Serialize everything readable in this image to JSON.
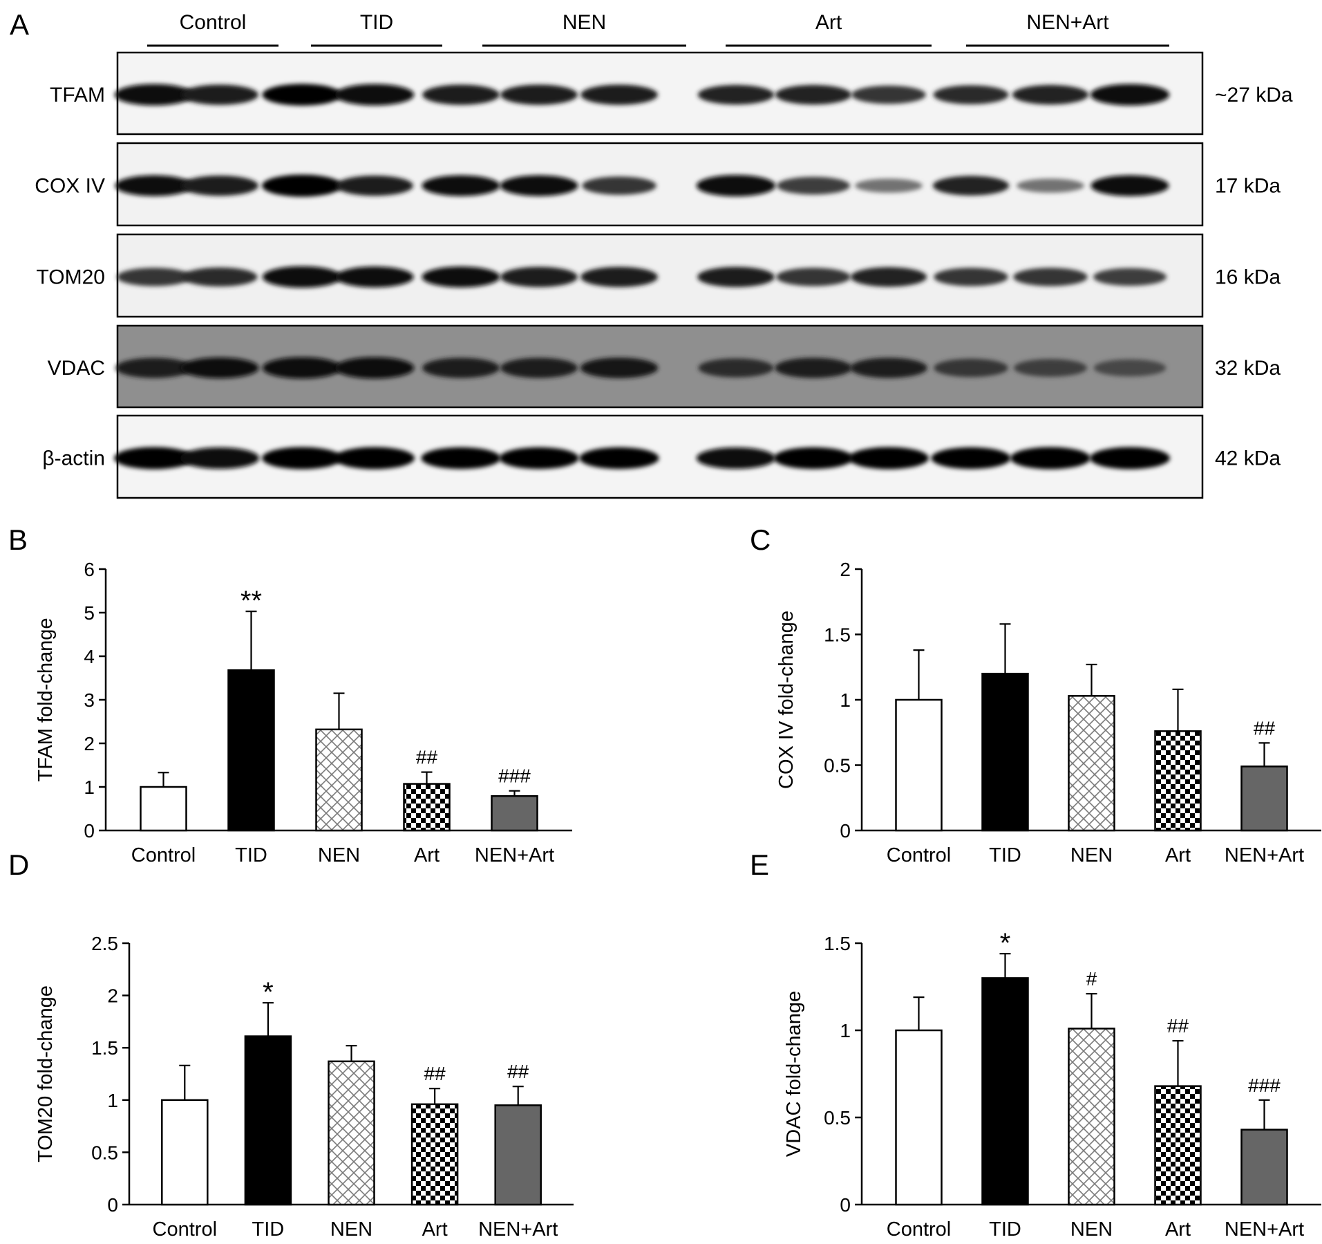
{
  "blot": {
    "panel_letter": "A",
    "groups": [
      {
        "label": "Control",
        "lanes": 2
      },
      {
        "label": "TID",
        "lanes": 2
      },
      {
        "label": "NEN",
        "lanes": 3
      },
      {
        "label": "Art",
        "lanes": 3
      },
      {
        "label": "NEN+Art",
        "lanes": 3
      }
    ],
    "rows": [
      {
        "protein": "TFAM",
        "mw": "~27 kDa",
        "background": "#f4f4f4",
        "intensity": [
          0.95,
          0.85,
          0.97,
          0.95,
          0.85,
          0.85,
          0.85,
          0.8,
          0.8,
          0.7,
          0.75,
          0.8,
          0.95
        ]
      },
      {
        "protein": "COX IV",
        "mw": "17 kDa",
        "background": "#f2f2f2",
        "intensity": [
          0.9,
          0.85,
          1.0,
          0.85,
          0.9,
          0.9,
          0.7,
          0.95,
          0.65,
          0.35,
          0.8,
          0.35,
          0.9
        ]
      },
      {
        "protein": "TOM20",
        "mw": "16 kDa",
        "background": "#f0f0f0",
        "intensity": [
          0.7,
          0.75,
          0.95,
          0.9,
          0.9,
          0.85,
          0.85,
          0.85,
          0.7,
          0.8,
          0.7,
          0.7,
          0.65
        ]
      },
      {
        "protein": "VDAC",
        "mw": "32 kDa",
        "background": "#8f8f8f",
        "intensity": [
          0.85,
          0.9,
          0.95,
          0.95,
          0.85,
          0.85,
          0.88,
          0.75,
          0.85,
          0.85,
          0.7,
          0.65,
          0.6
        ]
      },
      {
        "protein": "β-actin",
        "mw": "42 kDa",
        "background": "#f4f4f4",
        "intensity": [
          1.0,
          0.95,
          1.0,
          1.0,
          0.97,
          0.97,
          0.97,
          0.95,
          0.97,
          1.0,
          0.97,
          1.0,
          1.0
        ]
      }
    ]
  },
  "chart_data": [
    {
      "panel": "B",
      "type": "bar",
      "categories": [
        "Control",
        "TID",
        "NEN",
        "Art",
        "NEN+Art"
      ],
      "values": [
        1.0,
        3.68,
        2.32,
        1.07,
        0.79
      ],
      "errors": [
        0.33,
        1.35,
        0.83,
        0.27,
        0.12
      ],
      "annotations": [
        "",
        "**",
        "",
        "##",
        "###"
      ],
      "xlabel": "",
      "ylabel": "TFAM fold-change",
      "ylim": [
        0,
        6
      ],
      "yticks": [
        0,
        1,
        2,
        3,
        4,
        5,
        6
      ]
    },
    {
      "panel": "C",
      "type": "bar",
      "categories": [
        "Control",
        "TID",
        "NEN",
        "Art",
        "NEN+Art"
      ],
      "values": [
        1.0,
        1.2,
        1.03,
        0.76,
        0.49
      ],
      "errors": [
        0.38,
        0.38,
        0.24,
        0.32,
        0.18
      ],
      "annotations": [
        "",
        "",
        "",
        "",
        "##"
      ],
      "xlabel": "",
      "ylabel": "COX IV fold-change",
      "ylim": [
        0,
        2
      ],
      "yticks": [
        "0",
        "0.5",
        "1",
        "1.5",
        "2"
      ]
    },
    {
      "panel": "D",
      "type": "bar",
      "categories": [
        "Control",
        "TID",
        "NEN",
        "Art",
        "NEN+Art"
      ],
      "values": [
        1.0,
        1.61,
        1.37,
        0.96,
        0.95
      ],
      "errors": [
        0.33,
        0.32,
        0.15,
        0.15,
        0.18
      ],
      "annotations": [
        "",
        "*",
        "",
        "##",
        "##"
      ],
      "xlabel": "",
      "ylabel": "TOM20 fold-change",
      "ylim": [
        0,
        2.5
      ],
      "yticks": [
        "0",
        "0.5",
        "1",
        "1.5",
        "2",
        "2.5"
      ]
    },
    {
      "panel": "E",
      "type": "bar",
      "categories": [
        "Control",
        "TID",
        "NEN",
        "Art",
        "NEN+Art"
      ],
      "values": [
        1.0,
        1.3,
        1.01,
        0.68,
        0.43
      ],
      "errors": [
        0.19,
        0.14,
        0.2,
        0.26,
        0.17
      ],
      "annotations": [
        "",
        "*",
        "#",
        "##",
        "###"
      ],
      "xlabel": "",
      "ylabel": "VDAC fold-change",
      "ylim": [
        0,
        1.5
      ],
      "yticks": [
        "0",
        "0.5",
        "1",
        "1.5"
      ]
    }
  ],
  "bar_fills": [
    "white",
    "black",
    "crosshatch",
    "checker",
    "gray"
  ]
}
